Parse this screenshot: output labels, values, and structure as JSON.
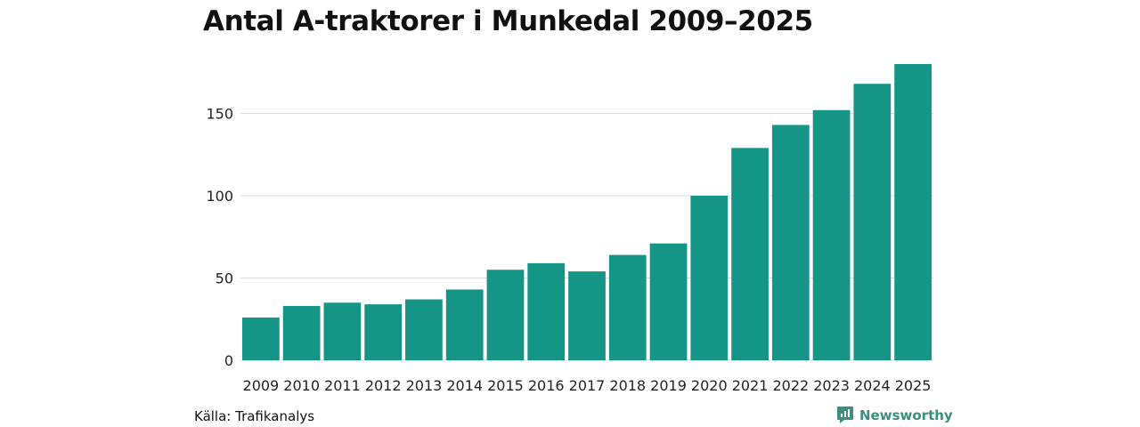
{
  "source": "Källa: Trafikanalys",
  "brand": {
    "name": "Newsworthy",
    "icon": "newsworthy-logo-icon",
    "color": "#3a8f7f"
  },
  "colors": {
    "bar": "#149586",
    "grid": "#dcdcdc"
  },
  "chart_data": {
    "type": "bar",
    "title": "Antal A-traktorer i Munkedal 2009–2025",
    "xlabel": "",
    "ylabel": "",
    "categories": [
      "2009",
      "2010",
      "2011",
      "2012",
      "2013",
      "2014",
      "2015",
      "2016",
      "2017",
      "2018",
      "2019",
      "2020",
      "2021",
      "2022",
      "2023",
      "2024",
      "2025"
    ],
    "values": [
      26,
      33,
      35,
      34,
      37,
      43,
      55,
      59,
      54,
      64,
      71,
      100,
      129,
      143,
      152,
      168,
      180
    ],
    "ylim": [
      0,
      180
    ],
    "yticks": [
      0,
      50,
      100,
      150
    ],
    "grid": true,
    "legend": "none"
  }
}
